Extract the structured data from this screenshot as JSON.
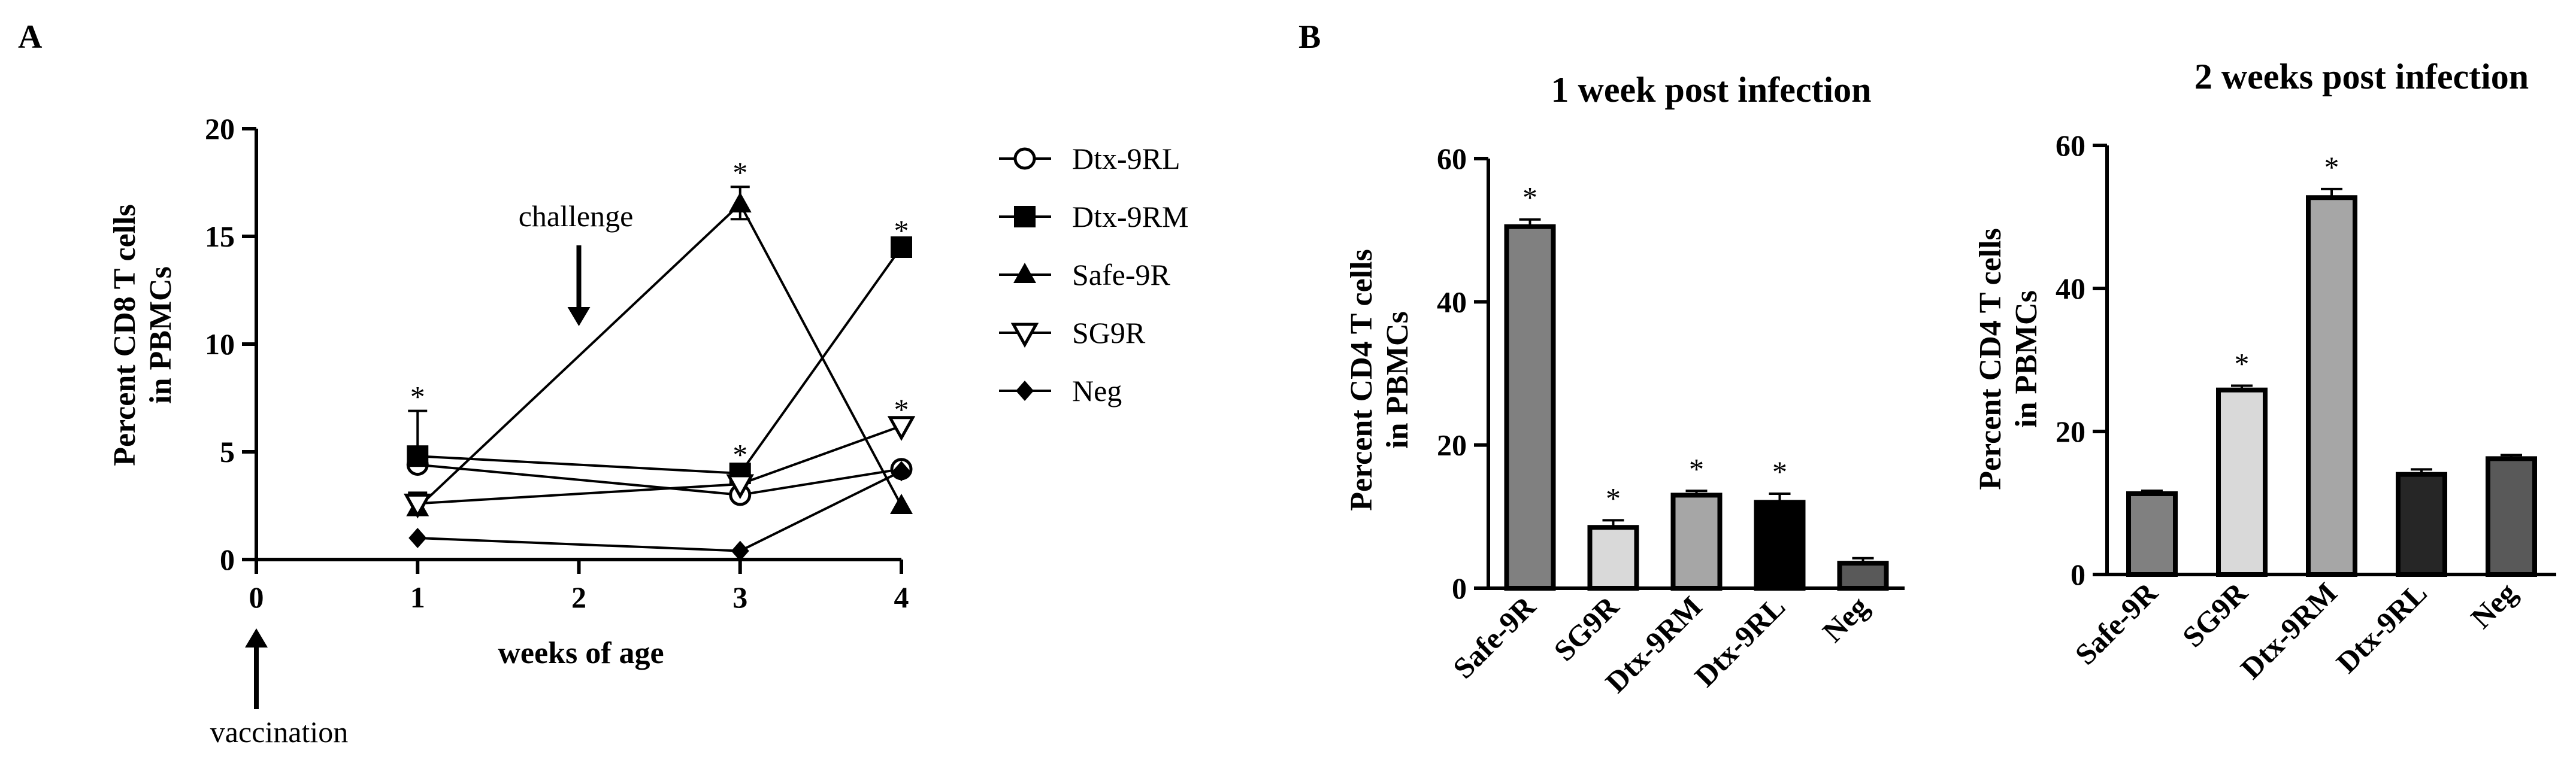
{
  "panel_labels": {
    "a": "A",
    "b": "B"
  },
  "chart_data": [
    {
      "type": "line",
      "panel": "A",
      "title": "",
      "xlabel": "weeks of age",
      "ylabel_line1": "Percent CD8 T cells",
      "ylabel_line2": "in PBMCs",
      "xlim": [
        0,
        4
      ],
      "ylim": [
        0,
        20
      ],
      "x_ticks": [
        0,
        1,
        2,
        3,
        4
      ],
      "x_tick_labels": [
        "0",
        "1",
        "2",
        "3",
        "4"
      ],
      "y_ticks": [
        0,
        5,
        10,
        15,
        20
      ],
      "y_tick_labels": [
        "0",
        "5",
        "10",
        "15",
        "20"
      ],
      "x": [
        1,
        3,
        4
      ],
      "series": [
        {
          "name": "Dtx-9RL",
          "marker": "circle-open",
          "values": [
            4.4,
            3.0,
            4.2
          ]
        },
        {
          "name": "Dtx-9RM",
          "marker": "square-filled",
          "values": [
            4.8,
            4.0,
            14.5
          ]
        },
        {
          "name": "Safe-9R",
          "marker": "triangle-up-filled",
          "values": [
            2.4,
            16.5,
            2.5
          ]
        },
        {
          "name": "SG9R",
          "marker": "triangle-down-open",
          "values": [
            2.6,
            3.5,
            6.2
          ]
        },
        {
          "name": "Neg",
          "marker": "diamond-filled",
          "values": [
            1.0,
            0.4,
            4.1
          ]
        }
      ],
      "error_bars": [
        {
          "series": "Dtx-9RM",
          "x": 1,
          "upper": 6.9
        },
        {
          "series": "Safe-9R",
          "x": 1,
          "upper": 3.1
        },
        {
          "series": "Safe-9R",
          "x": 3,
          "upper": 17.3
        },
        {
          "series": "Safe-9R",
          "x": 3,
          "lower": 15.8
        }
      ],
      "significance": [
        {
          "x": 1,
          "y": 7.6,
          "text": "*"
        },
        {
          "x": 3,
          "y": 18.0,
          "text": "*"
        },
        {
          "x": 3,
          "y": 4.9,
          "text": "*"
        },
        {
          "x": 4,
          "y": 15.3,
          "text": "*"
        },
        {
          "x": 4,
          "y": 7.0,
          "text": "*"
        }
      ],
      "annotations": [
        {
          "text": "challenge",
          "x": 2,
          "arrow": "down"
        },
        {
          "text": "vaccination",
          "x": 0,
          "arrow": "up"
        }
      ],
      "legend": {
        "position": "right"
      }
    },
    {
      "type": "bar",
      "panel": "B",
      "title": "1 week post infection",
      "ylabel_line1": "Percent CD4 T cells",
      "ylabel_line2": "in PBMCs",
      "categories": [
        "Safe-9R",
        "SG9R",
        "Dtx-9RM",
        "Dtx-9RL",
        "Neg"
      ],
      "values": [
        50.5,
        8.5,
        13.0,
        12.0,
        3.5
      ],
      "errors": [
        1.0,
        1.0,
        0.6,
        1.2,
        0.7
      ],
      "significant": [
        true,
        true,
        true,
        true,
        false
      ],
      "colors": [
        "#808080",
        "#d9d9d9",
        "#a6a6a6",
        "#000000",
        "#595959"
      ],
      "ylim": [
        0,
        60
      ],
      "y_ticks": [
        0,
        20,
        40,
        60
      ],
      "y_tick_labels": [
        "0",
        "20",
        "40",
        "60"
      ]
    },
    {
      "type": "bar",
      "panel": "B",
      "title": "2 weeks post infection",
      "ylabel_line1": "Percent CD4 T cells",
      "ylabel_line2": "in PBMCs",
      "categories": [
        "Safe-9R",
        "SG9R",
        "Dtx-9RM",
        "Dtx-9RL",
        "Neg"
      ],
      "values": [
        11.3,
        25.8,
        52.7,
        14.0,
        16.2
      ],
      "errors": [
        0.4,
        0.6,
        1.2,
        0.7,
        0.5
      ],
      "significant": [
        false,
        true,
        true,
        false,
        false
      ],
      "colors": [
        "#808080",
        "#d9d9d9",
        "#a6a6a6",
        "#262626",
        "#595959"
      ],
      "ylim": [
        0,
        60
      ],
      "y_ticks": [
        0,
        20,
        40,
        60
      ],
      "y_tick_labels": [
        "0",
        "20",
        "40",
        "60"
      ]
    }
  ]
}
